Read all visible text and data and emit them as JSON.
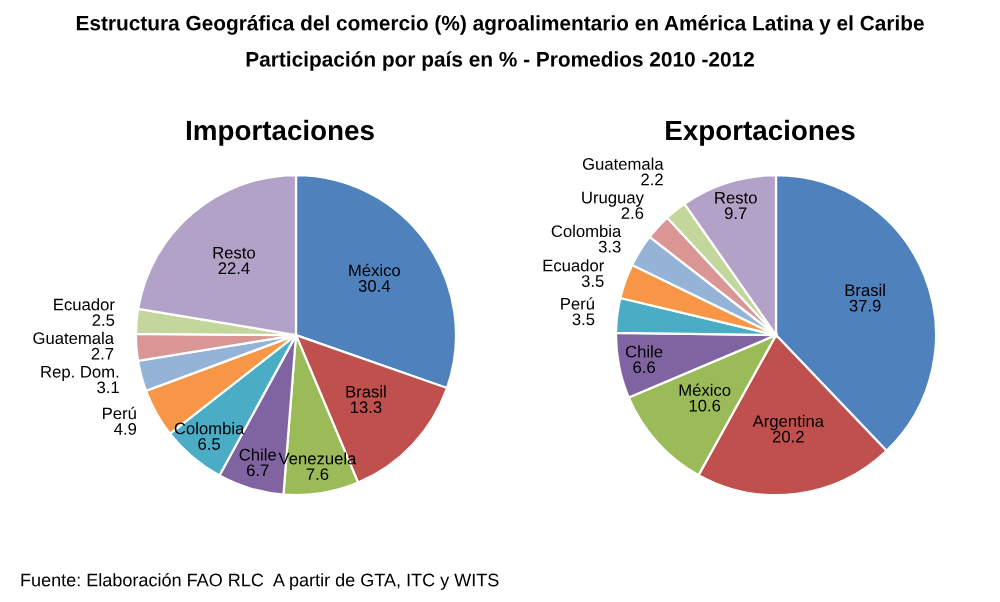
{
  "chart_data": [
    {
      "type": "pie",
      "title": "Importaciones",
      "annotations": [
        "Estructura Geográfica del comercio (%) agroalimentario en América Latina y el Caribe",
        "Participación por país en % - Promedios 2010 -2012"
      ],
      "categories": [
        "México",
        "Brasil",
        "Venezuela",
        "Chile",
        "Colombia",
        "Perú",
        "Rep. Dom.",
        "Guatemala",
        "Ecuador",
        "Resto"
      ],
      "values": [
        30.4,
        13.3,
        7.6,
        6.7,
        6.5,
        4.9,
        3.1,
        2.7,
        2.5,
        22.4
      ],
      "colors": [
        "#4f81bd",
        "#c0504d",
        "#9bbb59",
        "#8064a2",
        "#4bacc6",
        "#f79646",
        "#95b3d7",
        "#d99694",
        "#c3d69b",
        "#b3a2c7"
      ],
      "data_labels": true
    },
    {
      "type": "pie",
      "title": "Exportaciones",
      "annotations": [
        "Fuente: Elaboración FAO RLC  A partir de GTA, ITC y WITS"
      ],
      "categories": [
        "Brasil",
        "Argentina",
        "México",
        "Chile",
        "Perú",
        "Ecuador",
        "Colombia",
        "Uruguay",
        "Guatemala",
        "Resto"
      ],
      "values": [
        37.9,
        20.2,
        10.6,
        6.6,
        3.5,
        3.5,
        3.3,
        2.6,
        2.2,
        9.7
      ],
      "colors": [
        "#4f81bd",
        "#c0504d",
        "#9bbb59",
        "#8064a2",
        "#4bacc6",
        "#f79646",
        "#95b3d7",
        "#d99694",
        "#c3d69b",
        "#b3a2c7"
      ],
      "data_labels": true
    }
  ]
}
